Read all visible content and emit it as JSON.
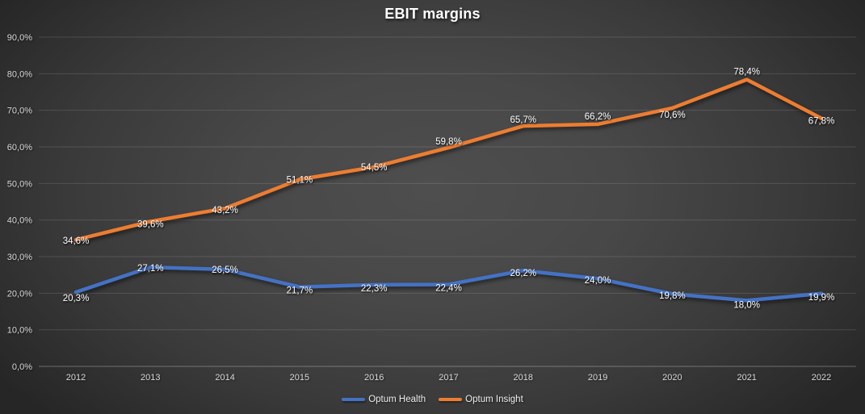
{
  "chart_data": {
    "type": "line",
    "title": "EBIT margins",
    "xlabel": "",
    "ylabel": "",
    "categories": [
      "2012",
      "2013",
      "2014",
      "2015",
      "2016",
      "2017",
      "2018",
      "2019",
      "2020",
      "2021",
      "2022"
    ],
    "series": [
      {
        "name": "Optum Health",
        "color": "#4472C4",
        "values": [
          20.3,
          27.1,
          26.5,
          21.7,
          22.3,
          22.4,
          26.2,
          24.0,
          19.8,
          18.0,
          19.9
        ],
        "labels": [
          "20,3%",
          "27,1%",
          "26,5%",
          "21,7%",
          "22,3%",
          "22,4%",
          "26,2%",
          "24,0%",
          "19,8%",
          "18,0%",
          "19,9%"
        ]
      },
      {
        "name": "Optum Insight",
        "color": "#ED7D31",
        "values": [
          34.6,
          39.6,
          43.2,
          51.1,
          54.5,
          59.8,
          65.7,
          66.2,
          70.6,
          78.4,
          67.8
        ],
        "labels": [
          "34,6%",
          "39,6%",
          "43,2%",
          "51,1%",
          "54,5%",
          "59,8%",
          "65,7%",
          "66,2%",
          "70,6%",
          "78,4%",
          "67,8%"
        ]
      }
    ],
    "y_axis": {
      "min": 0,
      "max": 90,
      "step": 10,
      "tick_labels": [
        "0,0%",
        "10,0%",
        "20,0%",
        "30,0%",
        "40,0%",
        "50,0%",
        "60,0%",
        "70,0%",
        "80,0%",
        "90,0%"
      ]
    },
    "ylim": [
      0,
      90
    ],
    "grid": true,
    "legend": {
      "position": "bottom",
      "entries": [
        "Optum Health",
        "Optum Insight"
      ]
    }
  },
  "colors": {
    "series_blue": "#4472C4",
    "series_orange": "#ED7D31",
    "gridline": "rgba(255,255,255,0.13)",
    "axis_line": "rgba(255,255,255,0.30)",
    "tick_text": "#d9d9d9",
    "data_label_text": "#ffffff",
    "title_text": "#ffffff",
    "background_center": "#4e4e4e",
    "background_edge": "#262626"
  }
}
